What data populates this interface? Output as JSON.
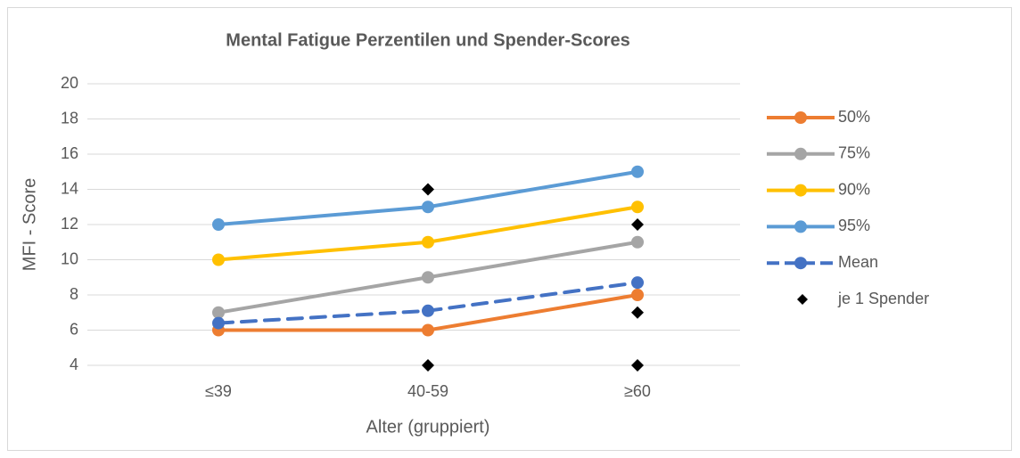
{
  "chart_data": {
    "type": "line",
    "title": "Mental Fatigue Perzentilen und Spender-Scores",
    "x_label": "Alter (gruppiert)",
    "y_label": "MFI - Score",
    "categories": [
      "≤39",
      "40-59",
      "≥60"
    ],
    "series": [
      {
        "name": "50%",
        "color": "#ed7d31",
        "values": [
          6,
          6,
          8
        ]
      },
      {
        "name": "75%",
        "color": "#a5a5a5",
        "values": [
          7,
          9,
          11
        ]
      },
      {
        "name": "90%",
        "color": "#ffc000",
        "values": [
          10,
          11,
          13
        ]
      },
      {
        "name": "95%",
        "color": "#5b9bd5",
        "values": [
          12,
          13,
          15
        ]
      },
      {
        "name": "Mean",
        "color": "#4472c4",
        "dashed": true,
        "values": [
          6.4,
          7.1,
          8.7
        ]
      },
      {
        "name": "je 1 Spender",
        "color": "#000000",
        "type": "scatter",
        "x": [
          "40-59",
          "40-59",
          "≥60",
          "≥60",
          "≥60"
        ],
        "values": [
          14,
          4,
          12,
          7,
          4
        ]
      }
    ],
    "ylim": [
      4,
      20
    ],
    "yticks": [
      4,
      6,
      8,
      10,
      12,
      14,
      16,
      18,
      20
    ],
    "grid": true,
    "legend": "right"
  }
}
